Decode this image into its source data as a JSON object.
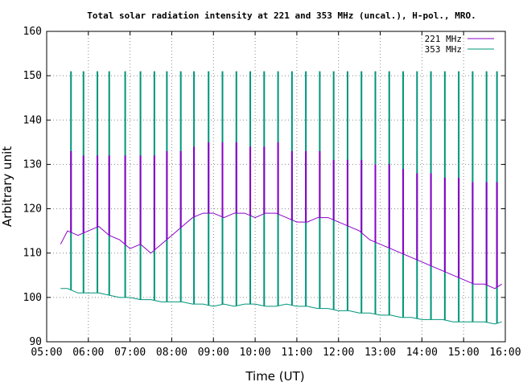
{
  "chart_data": {
    "type": "line",
    "title": "Total solar radiation intensity at 221 and 353 MHz (uncal.), H-pol., MRO.",
    "xlabel": "Time (UT)",
    "ylabel": "Arbitrary unit",
    "xlim": [
      "05:00",
      "16:00"
    ],
    "ylim": [
      90,
      160
    ],
    "grid": true,
    "legend_position": "top-right",
    "x_ticks": [
      "05:00",
      "06:00",
      "07:00",
      "08:00",
      "09:00",
      "10:00",
      "11:00",
      "12:00",
      "13:00",
      "14:00",
      "15:00",
      "16:00"
    ],
    "y_ticks": [
      90,
      100,
      110,
      120,
      130,
      140,
      150,
      160
    ],
    "series": [
      {
        "name": "221 MHz",
        "color": "#8a00c8",
        "x": [
          "05:20",
          "05:30",
          "05:45",
          "06:00",
          "06:15",
          "06:30",
          "06:45",
          "07:00",
          "07:15",
          "07:30",
          "07:45",
          "08:00",
          "08:15",
          "08:30",
          "08:45",
          "09:00",
          "09:15",
          "09:30",
          "09:45",
          "10:00",
          "10:15",
          "10:30",
          "10:45",
          "11:00",
          "11:15",
          "11:30",
          "11:45",
          "12:00",
          "12:15",
          "12:30",
          "12:45",
          "13:00",
          "13:15",
          "13:30",
          "13:45",
          "14:00",
          "14:15",
          "14:30",
          "14:45",
          "15:00",
          "15:15",
          "15:30",
          "15:45",
          "15:55"
        ],
        "y": [
          112,
          115,
          114,
          115,
          116,
          114,
          113,
          111,
          112,
          110,
          112,
          114,
          116,
          118,
          119,
          119,
          118,
          119,
          119,
          118,
          119,
          119,
          118,
          117,
          117,
          118,
          118,
          117,
          116,
          115,
          113,
          112,
          111,
          110,
          109,
          108,
          107,
          106,
          105,
          104,
          103,
          103,
          102,
          103
        ],
        "spikes": {
          "x": [
            "05:35",
            "05:53",
            "06:13",
            "06:30",
            "06:53",
            "07:15",
            "07:35",
            "07:53",
            "08:13",
            "08:32",
            "08:53",
            "09:13",
            "09:33",
            "09:53",
            "10:13",
            "10:33",
            "10:53",
            "11:13",
            "11:33",
            "11:53",
            "12:13",
            "12:33",
            "12:53",
            "13:13",
            "13:33",
            "13:53",
            "14:13",
            "14:33",
            "14:53",
            "15:13",
            "15:33",
            "15:48"
          ],
          "y": [
            133,
            132,
            132,
            132,
            132,
            132,
            132,
            133,
            133,
            134,
            135,
            135,
            135,
            134,
            134,
            135,
            133,
            133,
            133,
            131,
            131,
            131,
            130,
            130,
            129,
            128,
            128,
            127,
            127,
            126,
            126,
            126
          ]
        }
      },
      {
        "name": "353 MHz",
        "color": "#00957a",
        "x": [
          "05:20",
          "05:30",
          "05:45",
          "06:00",
          "06:15",
          "06:30",
          "06:45",
          "07:00",
          "07:15",
          "07:30",
          "07:45",
          "08:00",
          "08:15",
          "08:30",
          "08:45",
          "09:00",
          "09:15",
          "09:30",
          "09:45",
          "10:00",
          "10:15",
          "10:30",
          "10:45",
          "11:00",
          "11:15",
          "11:30",
          "11:45",
          "12:00",
          "12:15",
          "12:30",
          "12:45",
          "13:00",
          "13:15",
          "13:30",
          "13:45",
          "14:00",
          "14:15",
          "14:30",
          "14:45",
          "15:00",
          "15:15",
          "15:30",
          "15:45",
          "15:55"
        ],
        "y": [
          102,
          102,
          101,
          101,
          101,
          100.5,
          100,
          100,
          99.5,
          99.5,
          99,
          99,
          99,
          98.5,
          98.5,
          98,
          98.5,
          98,
          98.5,
          98.5,
          98,
          98,
          98.5,
          98,
          98,
          97.5,
          97.5,
          97,
          97,
          96.5,
          96.5,
          96,
          96,
          95.5,
          95.5,
          95,
          95,
          95,
          94.5,
          94.5,
          94.5,
          94.5,
          94,
          94.5
        ],
        "spikes": {
          "x": [
            "05:35",
            "05:53",
            "06:13",
            "06:30",
            "06:53",
            "07:15",
            "07:35",
            "07:53",
            "08:13",
            "08:32",
            "08:53",
            "09:13",
            "09:33",
            "09:53",
            "10:13",
            "10:33",
            "10:53",
            "11:13",
            "11:33",
            "11:53",
            "12:13",
            "12:33",
            "12:53",
            "13:13",
            "13:33",
            "13:53",
            "14:13",
            "14:33",
            "14:53",
            "15:13",
            "15:33",
            "15:48"
          ],
          "y": [
            151,
            151,
            151,
            151,
            151,
            151,
            151,
            151,
            151,
            151,
            151,
            151,
            151,
            151,
            151,
            151,
            151,
            151,
            151,
            151,
            151,
            151,
            151,
            151,
            151,
            151,
            151,
            151,
            151,
            151,
            151,
            151
          ]
        }
      }
    ]
  }
}
